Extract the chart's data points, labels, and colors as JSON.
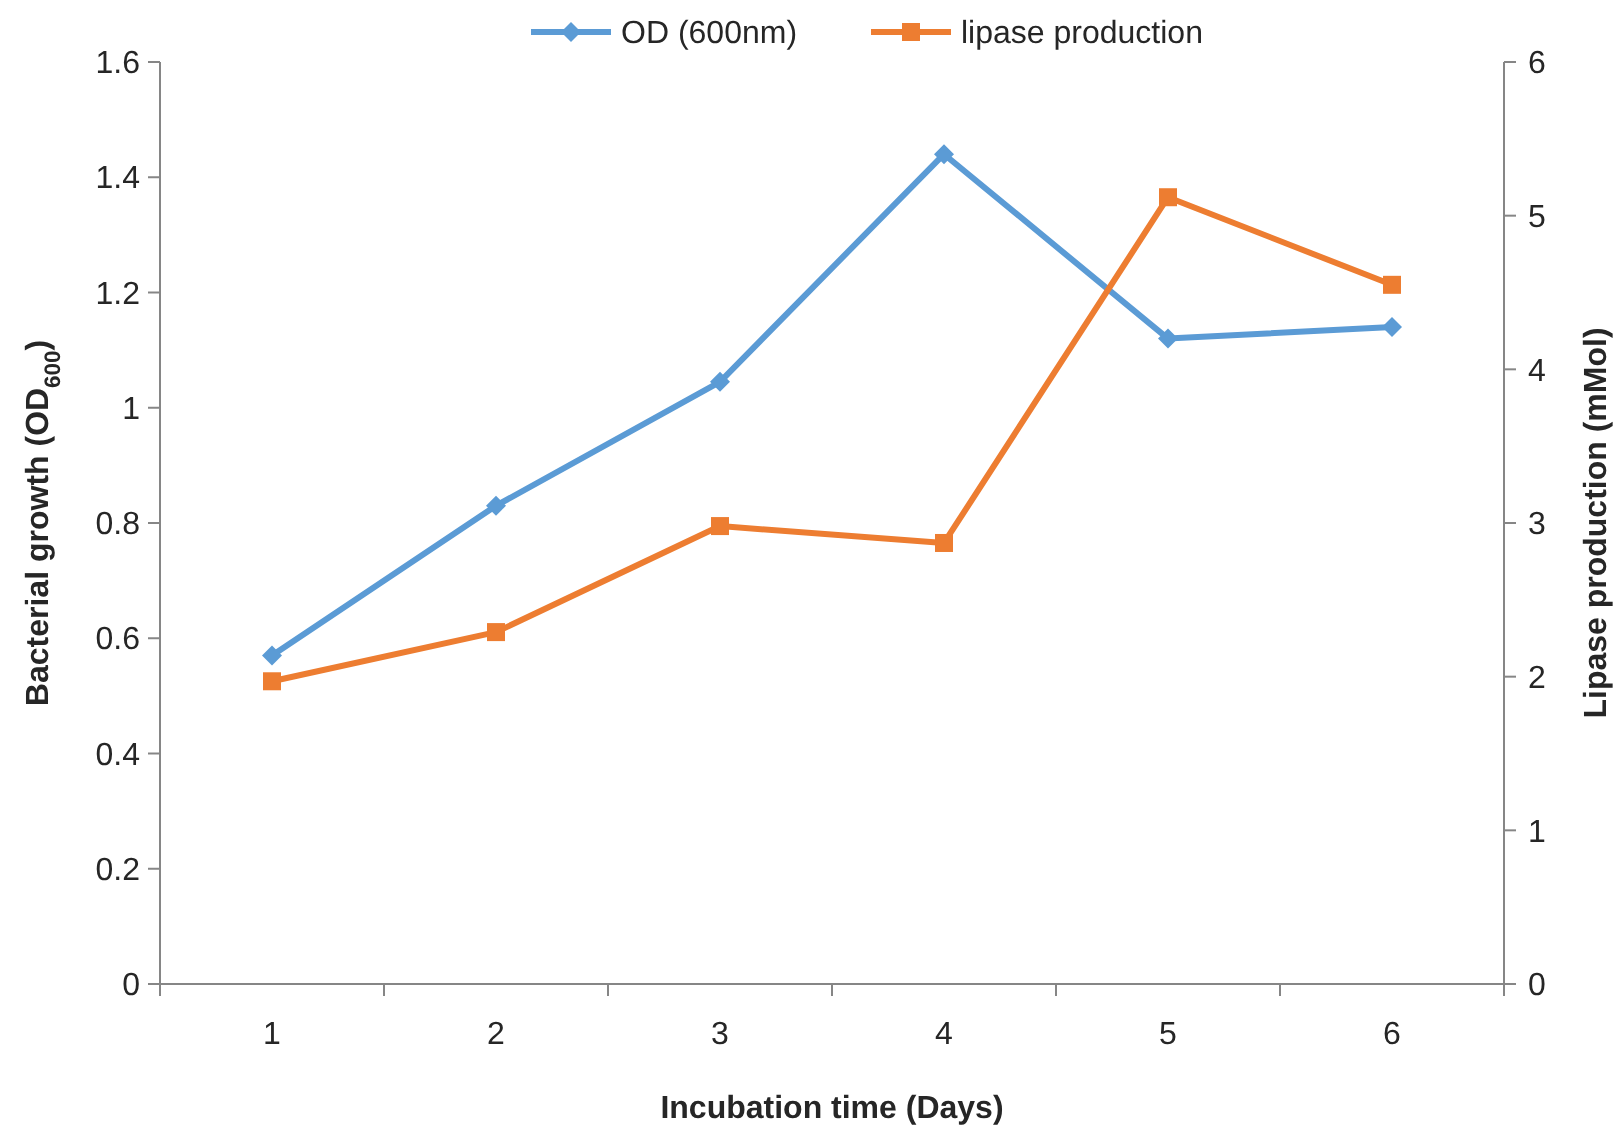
{
  "chart_data": {
    "type": "line",
    "xlabel": "Incubation time (Days)",
    "ylabel": "Bacterial growth (OD$_{600}$)",
    "y2label": "Lipase production (mMol)",
    "categories": [
      "1",
      "2",
      "3",
      "4",
      "5",
      "6"
    ],
    "series": [
      {
        "name": "OD (600nm)",
        "color": "#5b9bd5",
        "values": [
          0.57,
          0.83,
          1.045,
          1.44,
          1.12,
          1.14
        ],
        "marker": "diamond"
      },
      {
        "name": "lipase production",
        "color": "#ed7d31",
        "values": [
          1.97,
          2.29,
          2.98,
          2.87,
          5.12,
          4.55
        ],
        "marker": "square",
        "axis": "y2"
      }
    ],
    "ylim": [
      0,
      1.6
    ],
    "yticks": [
      0,
      0.2,
      0.4,
      0.6,
      0.8,
      1,
      1.2,
      1.4,
      1.6
    ],
    "y2lim": [
      0,
      6
    ],
    "y2ticks": [
      0,
      1,
      2,
      3,
      4,
      5,
      6
    ],
    "grid": false,
    "legend": "top",
    "line_style": "solid"
  }
}
